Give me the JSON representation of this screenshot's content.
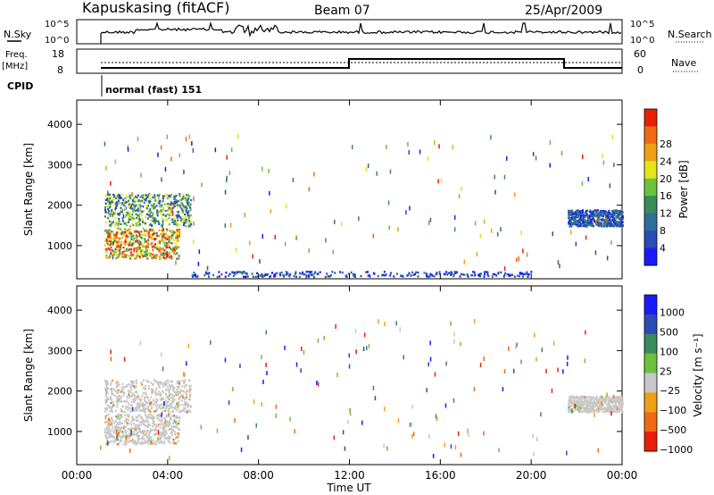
{
  "header": {
    "station": "Kapuskasing (fitACF)",
    "beam": "Beam 07",
    "date": "25/Apr/2009"
  },
  "top_panels": {
    "nsky_label": "N.Sky",
    "nsearch_label": "N.Search",
    "nsky_ticks": [
      "10^5",
      "10^0"
    ],
    "nsearch_ticks": [
      "10^5",
      "10^0"
    ],
    "freq_label_1": "Freq.",
    "freq_label_2": "[MHz]",
    "freq_ticks": [
      "18",
      "8"
    ],
    "nave_label": "Nave",
    "nave_ticks": [
      "60",
      "0"
    ],
    "cpid_label": "CPID",
    "cpid_value": "normal (fast) 151"
  },
  "colors": {
    "power_scale": [
      "#1a1aff",
      "#2a4cb4",
      "#2e6e98",
      "#3a8a5a",
      "#6cc23c",
      "#e6e41a",
      "#f0a014",
      "#f06a14",
      "#e8200a"
    ],
    "velocity_scale": [
      "#1a1aff",
      "#2a4cb4",
      "#3a8a5a",
      "#6cc23c",
      "#c8c8c8",
      "#f0a014",
      "#f06a14",
      "#e8200a"
    ]
  },
  "chart_data": [
    {
      "type": "heatmap",
      "name": "power",
      "ylabel": "Slant Range [km]",
      "ylim": [
        180,
        4600
      ],
      "y_ticks": [
        "1000",
        "2000",
        "3000",
        "4000"
      ],
      "xlim_hours": [
        0,
        24
      ],
      "x_ticks": [
        "00:00",
        "04:00",
        "08:00",
        "12:00",
        "16:00",
        "20:00",
        "00:00"
      ],
      "colorbar_label": "Power [dB]",
      "colorbar_ticks": [
        "4",
        "8",
        "12",
        "16",
        "20",
        "24",
        "28"
      ],
      "regions": [
        {
          "t0": 1.2,
          "t1": 4.5,
          "r0": 700,
          "r1": 1450,
          "level": "high"
        },
        {
          "t0": 1.2,
          "t1": 5.0,
          "r0": 1500,
          "r1": 2300,
          "level": "mid"
        },
        {
          "t0": 21.6,
          "t1": 24.0,
          "r0": 1500,
          "r1": 1900,
          "level": "low-mid"
        },
        {
          "t0": 5.0,
          "t1": 20.0,
          "r0": 250,
          "r1": 380,
          "level": "low"
        }
      ]
    },
    {
      "type": "heatmap",
      "name": "velocity",
      "ylabel": "Slant Range [km]",
      "ylim": [
        180,
        4600
      ],
      "y_ticks": [
        "1000",
        "2000",
        "3000",
        "4000"
      ],
      "xlim_hours": [
        0,
        24
      ],
      "x_ticks": [
        "00:00",
        "04:00",
        "08:00",
        "12:00",
        "16:00",
        "20:00",
        "00:00"
      ],
      "xlabel": "Time UT",
      "colorbar_label": "Velocity [m s⁻¹]",
      "colorbar_ticks": [
        "1000",
        "500",
        "100",
        "25",
        "−25",
        "−100",
        "−500",
        "−1000"
      ],
      "regions": [
        {
          "t0": 1.2,
          "t1": 4.5,
          "r0": 700,
          "r1": 1450,
          "level": "near-zero"
        },
        {
          "t0": 1.2,
          "t1": 5.0,
          "r0": 1500,
          "r1": 2300,
          "level": "near-zero"
        },
        {
          "t0": 21.6,
          "t1": 24.0,
          "r0": 1500,
          "r1": 1900,
          "level": "near-zero"
        }
      ]
    }
  ]
}
